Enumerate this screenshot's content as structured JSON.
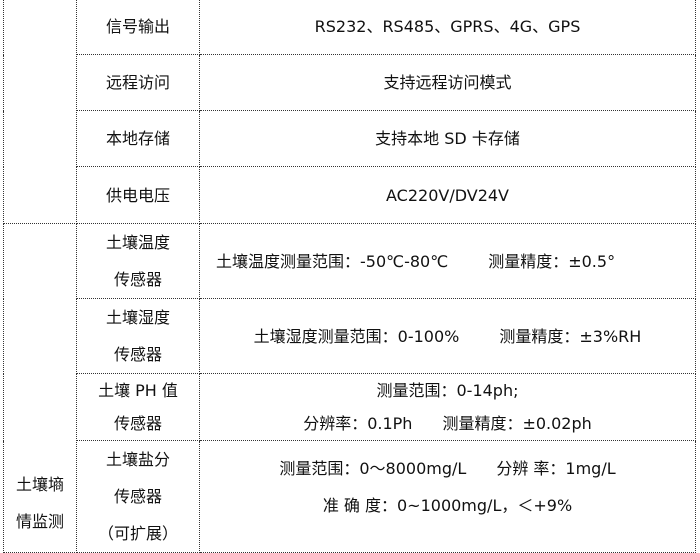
{
  "rows_top": [
    {
      "label": "信号输出",
      "value": "RS232、RS485、GPRS、4G、GPS"
    },
    {
      "label": "远程访问",
      "value": "支持远程访问模式"
    },
    {
      "label": "本地存储",
      "value": "支持本地 SD 卡存储"
    },
    {
      "label": "供电电压",
      "value": "AC220V/DV24V"
    }
  ],
  "group": {
    "label_line1": "土壤墒",
    "label_line2": "情监测"
  },
  "sensors": [
    {
      "name1": "土壤温度",
      "name2": "传感器",
      "a": "土壤温度测量范围：-50℃-80℃",
      "b": "测量精度：±0.5°"
    },
    {
      "name1": "土壤湿度",
      "name2": "传感器",
      "a": "土壤湿度测量范围：0-100%",
      "b": "测量精度：±3%RH"
    },
    {
      "name1": "土壤 PH 值",
      "name2": "传感器",
      "line1": "测量范围：0-14ph;",
      "a": "分辨率：0.1Ph",
      "b": "测量精度：±0.02ph"
    },
    {
      "name1": "土壤盐分",
      "name2": "传感器",
      "name3": "（可扩展）",
      "a": "测量范围：0～8000mg/L",
      "b": "分辨 率：1mg/L",
      "line2": "准 确 度：0~1000mg/L，＜+9%"
    }
  ]
}
